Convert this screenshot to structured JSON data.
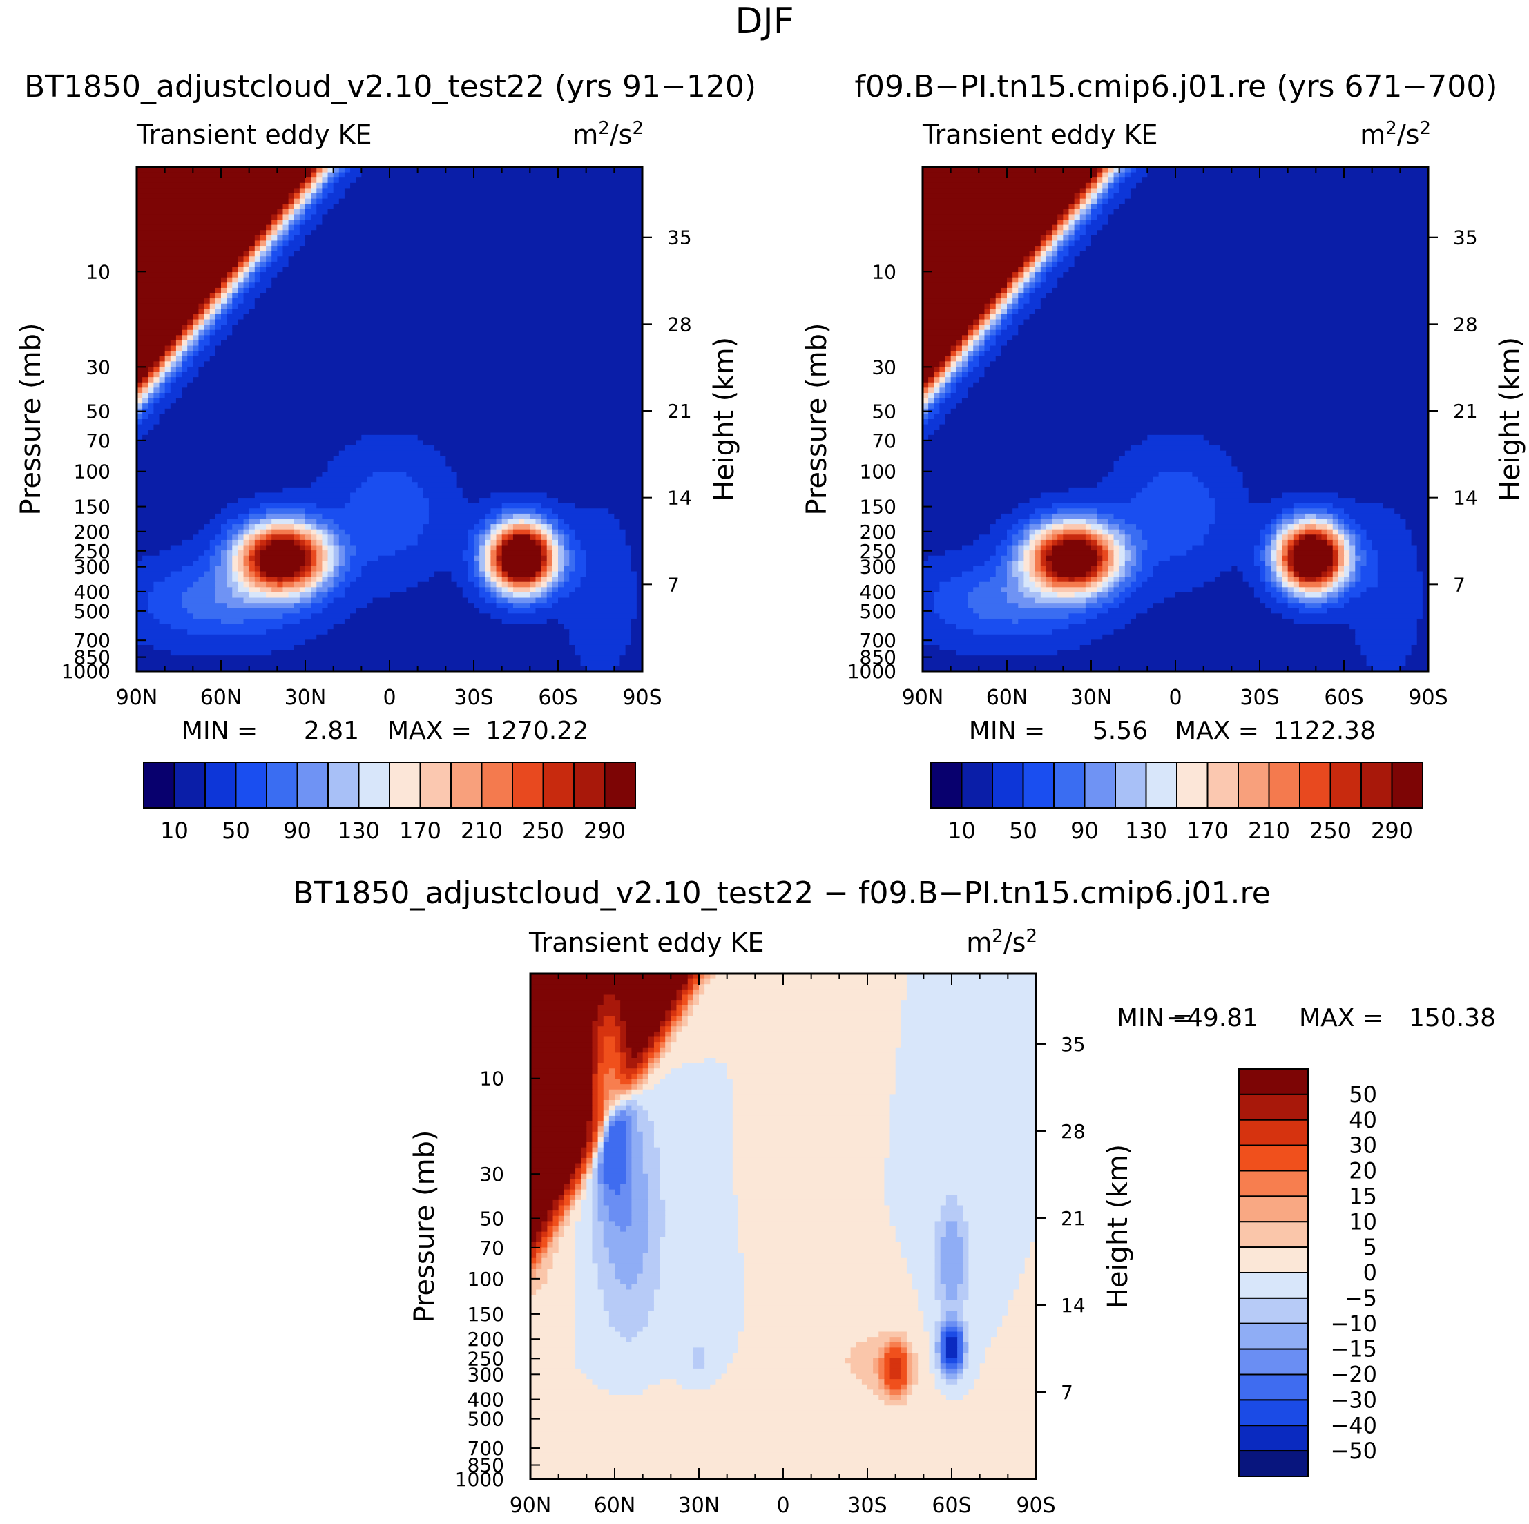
{
  "figure": {
    "title": "DJF",
    "diff_title": "BT1850_adjustcloud_v2.10_test22 − f09.B−PI.tn15.cmip6.j01.re"
  },
  "panels": [
    {
      "run": "BT1850_adjustcloud_v2.10_test22 (yrs 91−120)",
      "var": "Transient eddy KE",
      "units_base": "m",
      "units_sup": "2",
      "units_mid": "/s",
      "units_sup2": "2",
      "min_label": "MIN =",
      "min_value": "2.81",
      "max_label": "MAX =",
      "max_value": "1270.22"
    },
    {
      "run": "f09.B−PI.tn15.cmip6.j01.re (yrs 671−700)",
      "var": "Transient eddy KE",
      "units_base": "m",
      "units_sup": "2",
      "units_mid": "/s",
      "units_sup2": "2",
      "min_label": "MIN =",
      "min_value": "5.56",
      "max_label": "MAX =",
      "max_value": "1122.38"
    },
    {
      "run": "",
      "var": "Transient eddy KE",
      "units_base": "m",
      "units_sup": "2",
      "units_mid": "/s",
      "units_sup2": "2",
      "min_label": "MIN =",
      "min_value": "−49.81",
      "max_label": "MAX =",
      "max_value": "150.38"
    }
  ],
  "colors": {
    "abs_scale": [
      "#08006e",
      "#0a1ea8",
      "#0d36d8",
      "#1a4ef0",
      "#3a6df2",
      "#6f93f4",
      "#a8c0f7",
      "#d8e6fa",
      "#fce6d8",
      "#fbc8b0",
      "#f8a07c",
      "#f47a4e",
      "#e8491f",
      "#c82a0e",
      "#a8180a",
      "#7d0505"
    ],
    "diff_scale": [
      "#7d0505",
      "#a8180a",
      "#d6330f",
      "#f0501c",
      "#f77e4f",
      "#f9a883",
      "#fac6aa",
      "#fbe7d7",
      "#d8e6fa",
      "#b7cbf7",
      "#8fadf5",
      "#6a8ef3",
      "#3f6cf0",
      "#1b4be6",
      "#0a2ac0",
      "#08157e"
    ]
  },
  "chart_data": [
    {
      "type": "heatmap",
      "title": "BT1850_adjustcloud_v2.10_test22 (yrs 91−120)",
      "subtitle": "Transient eddy KE",
      "units": "m2/s2",
      "xlabel": "",
      "ylabel": "Pressure (mb)",
      "ylabel_right": "Height (km)",
      "x_ticks": [
        "90N",
        "60N",
        "30N",
        "0",
        "30S",
        "60S",
        "90S"
      ],
      "x_range": [
        90,
        -90
      ],
      "y_ticks": [
        10,
        30,
        50,
        70,
        100,
        150,
        200,
        250,
        300,
        400,
        500,
        700,
        850,
        1000
      ],
      "y_scale": "log",
      "y_range": [
        3,
        1000
      ],
      "right_ticks": [
        35,
        28,
        21,
        14,
        7
      ],
      "min": 2.81,
      "max": 1270.22,
      "colorbar_labels": [
        "10",
        "50",
        "90",
        "130",
        "170",
        "210",
        "250",
        "290"
      ],
      "colorbar_orientation": "horizontal",
      "features": [
        {
          "kind": "jet",
          "lat": 38,
          "p": 270,
          "peak": 330
        },
        {
          "kind": "jet",
          "lat": -47,
          "p": 265,
          "peak": 380
        },
        {
          "kind": "polar_stratosphere",
          "lat": 90,
          "p": 3,
          "value": ">290"
        }
      ]
    },
    {
      "type": "heatmap",
      "title": "f09.B−PI.tn15.cmip6.j01.re (yrs 671−700)",
      "subtitle": "Transient eddy KE",
      "units": "m2/s2",
      "ylabel": "Pressure (mb)",
      "ylabel_right": "Height (km)",
      "x_ticks": [
        "90N",
        "60N",
        "30N",
        "0",
        "30S",
        "60S",
        "90S"
      ],
      "x_range": [
        90,
        -90
      ],
      "y_ticks": [
        10,
        30,
        50,
        70,
        100,
        150,
        200,
        250,
        300,
        400,
        500,
        700,
        850,
        1000
      ],
      "y_scale": "log",
      "y_range": [
        3,
        1000
      ],
      "right_ticks": [
        35,
        28,
        21,
        14,
        7
      ],
      "min": 5.56,
      "max": 1122.38,
      "colorbar_labels": [
        "10",
        "50",
        "90",
        "130",
        "170",
        "210",
        "250",
        "290"
      ],
      "colorbar_orientation": "horizontal",
      "features": [
        {
          "kind": "jet",
          "lat": 40,
          "p": 270,
          "peak": 310
        },
        {
          "kind": "jet",
          "lat": -48,
          "p": 265,
          "peak": 360
        },
        {
          "kind": "polar_stratosphere",
          "lat": 90,
          "p": 3,
          "value": ">290"
        }
      ]
    },
    {
      "type": "heatmap",
      "title": "BT1850_adjustcloud_v2.10_test22 − f09.B−PI.tn15.cmip6.j01.re",
      "subtitle": "Transient eddy KE",
      "units": "m2/s2",
      "ylabel": "Pressure (mb)",
      "ylabel_right": "Height (km)",
      "x_ticks": [
        "90N",
        "60N",
        "30N",
        "0",
        "30S",
        "60S",
        "90S"
      ],
      "x_range": [
        90,
        -90
      ],
      "y_ticks": [
        10,
        30,
        50,
        70,
        100,
        150,
        200,
        250,
        300,
        400,
        500,
        700,
        850,
        1000
      ],
      "y_scale": "log",
      "y_range": [
        3,
        1000
      ],
      "right_ticks": [
        35,
        28,
        21,
        14,
        7
      ],
      "min": -49.81,
      "max": 150.38,
      "colorbar_labels": [
        "50",
        "40",
        "30",
        "20",
        "15",
        "10",
        "5",
        "0",
        "−5",
        "−10",
        "−15",
        "−20",
        "−30",
        "−40",
        "−50"
      ],
      "colorbar_orientation": "vertical",
      "features": [
        {
          "kind": "positive",
          "lat": 85,
          "p": 3,
          "value": ">50"
        },
        {
          "kind": "negative",
          "lat": 62,
          "p": 15,
          "value": -45
        },
        {
          "kind": "positive",
          "lat": -40,
          "p": 300,
          "value": 35
        },
        {
          "kind": "negative",
          "lat": -60,
          "p": 230,
          "value": -45
        }
      ]
    }
  ]
}
